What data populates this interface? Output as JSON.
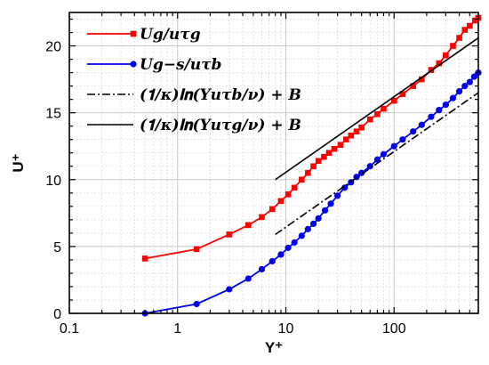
{
  "chart_data": {
    "type": "line",
    "xscale": "log",
    "xlim": [
      0.1,
      600
    ],
    "ylim": [
      0,
      22.5
    ],
    "xlabel": "Y⁺",
    "ylabel": "U⁺",
    "grid": true,
    "legend_position": "top-left",
    "x_ticks": [
      {
        "value": 0.1,
        "label": "0.1"
      },
      {
        "value": 1,
        "label": "1"
      },
      {
        "value": 10,
        "label": "10"
      },
      {
        "value": 100,
        "label": "100"
      }
    ],
    "y_ticks": [
      {
        "value": 0,
        "label": "0"
      },
      {
        "value": 5,
        "label": "5"
      },
      {
        "value": 10,
        "label": "10"
      },
      {
        "value": 15,
        "label": "15"
      },
      {
        "value": 20,
        "label": "20"
      }
    ],
    "series": [
      {
        "name": "U_g/u_τg",
        "legend": "𝑼𝒈/𝒖𝝉𝒈",
        "color": "#ff0000",
        "marker": "square",
        "x": [
          0.5,
          1.5,
          3.0,
          4.5,
          6.0,
          7.5,
          9.0,
          10.5,
          12.0,
          14.0,
          16.0,
          18.0,
          20.0,
          22.5,
          25.0,
          28.0,
          32.0,
          36.0,
          40.0,
          45.0,
          50.0,
          60.0,
          70.0,
          80.0,
          100.0,
          120.0,
          150.0,
          180.0,
          220.0,
          260.0,
          300.0,
          350.0,
          400.0,
          450.0,
          500.0,
          560.0,
          600.0
        ],
        "y": [
          4.1,
          4.8,
          5.9,
          6.6,
          7.2,
          7.8,
          8.4,
          8.9,
          9.4,
          10.0,
          10.5,
          11.0,
          11.4,
          11.7,
          12.0,
          12.3,
          12.6,
          13.0,
          13.3,
          13.6,
          13.9,
          14.5,
          14.9,
          15.3,
          15.9,
          16.4,
          17.0,
          17.5,
          18.2,
          18.7,
          19.3,
          20.0,
          20.6,
          21.2,
          21.5,
          21.9,
          22.1
        ]
      },
      {
        "name": "U_g−s/u_τb",
        "legend": "𝑼𝒈−𝒔/𝒖𝝉𝒃",
        "color": "#0000ee",
        "marker": "circle",
        "x": [
          0.5,
          1.5,
          3.0,
          4.5,
          6.0,
          7.5,
          9.0,
          10.5,
          12.0,
          14.0,
          16.0,
          18.0,
          20.0,
          23.0,
          26.0,
          30.0,
          35.0,
          40.0,
          45.0,
          50.0,
          60.0,
          70.0,
          80.0,
          100.0,
          120.0,
          150.0,
          180.0,
          220.0,
          260.0,
          300.0,
          350.0,
          400.0,
          450.0,
          500.0,
          550.0,
          600.0
        ],
        "y": [
          0.0,
          0.7,
          1.8,
          2.6,
          3.3,
          3.9,
          4.4,
          4.9,
          5.3,
          5.8,
          6.3,
          6.7,
          7.1,
          7.7,
          8.2,
          8.8,
          9.4,
          9.8,
          10.2,
          10.5,
          11.0,
          11.5,
          11.9,
          12.5,
          13.0,
          13.6,
          14.1,
          14.7,
          15.2,
          15.6,
          16.1,
          16.6,
          17.0,
          17.3,
          17.7,
          18.0
        ]
      },
      {
        "name": "(1/κ)ln(Yu_τb/ν) + B",
        "legend": "(𝟏/𝜿)𝐥𝐧(𝒀𝒖𝝉𝒃/𝝂) + 𝑩",
        "color": "#000000",
        "dash": "dashdot",
        "x": [
          8,
          600
        ],
        "y": [
          5.9,
          16.5
        ]
      },
      {
        "name": "(1/κ)ln(Yu_τg/ν) + B",
        "legend": "(𝟏/𝜿)𝐥𝐧(𝒀𝒖𝝉𝒈/𝝂) + 𝑩",
        "color": "#000000",
        "dash": "solid",
        "x": [
          8,
          600
        ],
        "y": [
          10.0,
          20.6
        ]
      }
    ]
  }
}
